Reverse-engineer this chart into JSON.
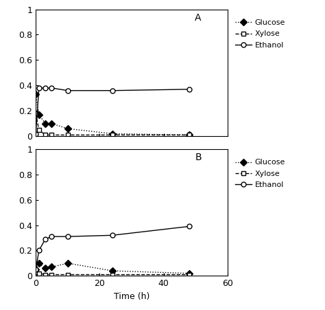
{
  "panel_A": {
    "glucose_x": [
      0,
      1,
      3,
      5,
      10,
      24,
      48
    ],
    "glucose_y": [
      0.33,
      0.17,
      0.1,
      0.1,
      0.06,
      0.02,
      0.01
    ],
    "xylose_x": [
      0,
      1,
      3,
      5,
      10,
      24,
      48
    ],
    "xylose_y": [
      0.18,
      0.05,
      0.01,
      0.01,
      0.01,
      0.01,
      0.01
    ],
    "ethanol_x": [
      0,
      1,
      3,
      5,
      10,
      24,
      48
    ],
    "ethanol_y": [
      0.02,
      0.38,
      0.38,
      0.38,
      0.36,
      0.36,
      0.37
    ],
    "label": "A"
  },
  "panel_B": {
    "glucose_x": [
      0,
      1,
      3,
      5,
      10,
      24,
      48
    ],
    "glucose_y": [
      0.05,
      0.1,
      0.06,
      0.07,
      0.1,
      0.04,
      0.02
    ],
    "xylose_x": [
      0,
      1,
      3,
      5,
      10,
      24,
      48
    ],
    "xylose_y": [
      0.03,
      0.02,
      0.01,
      0.01,
      0.01,
      0.01,
      0.01
    ],
    "ethanol_x": [
      0,
      1,
      3,
      5,
      10,
      24,
      48
    ],
    "ethanol_y": [
      0.05,
      0.2,
      0.29,
      0.31,
      0.31,
      0.32,
      0.39
    ],
    "label": "B"
  },
  "xlabel": "Time (h)",
  "ylim": [
    0,
    1
  ],
  "xlim": [
    0,
    60
  ],
  "yticks": [
    0,
    0.2,
    0.4,
    0.6,
    0.8,
    1
  ],
  "ytick_labels": [
    "0",
    "0.2",
    "0.4",
    "0.6",
    "0.8",
    "1"
  ],
  "xticks": [
    0,
    20,
    40,
    60
  ],
  "xtick_labels": [
    "0",
    "20",
    "40",
    "60"
  ],
  "glucose_linestyle": "dotted",
  "glucose_marker": "D",
  "glucose_markerfacecolor": "black",
  "xylose_linestyle": "dashed",
  "xylose_marker": "s",
  "xylose_markerfacecolor": "white",
  "ethanol_linestyle": "solid",
  "ethanol_marker": "o",
  "ethanol_markerfacecolor": "white",
  "line_color": "black",
  "markersize": 5,
  "linewidth": 1,
  "legend_labels": [
    "Glucose",
    "Xylose",
    "Ethanol"
  ],
  "fontsize": 9,
  "label_fontsize": 10,
  "background_color": "#ffffff"
}
